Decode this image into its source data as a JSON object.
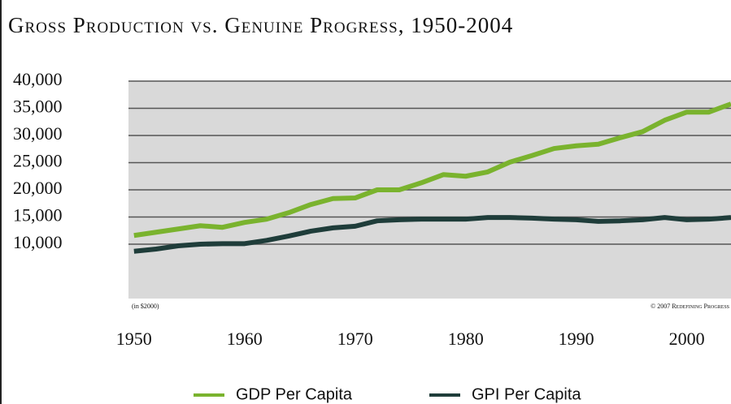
{
  "chart_data": {
    "type": "line",
    "title": "Gross Production vs. Genuine Progress, 1950-2004",
    "annotations": [
      "(in $2000)",
      "© 2007 Redefining Progress"
    ],
    "x": [
      1950,
      1952,
      1954,
      1956,
      1958,
      1960,
      1962,
      1964,
      1966,
      1968,
      1970,
      1972,
      1974,
      1976,
      1978,
      1980,
      1982,
      1984,
      1986,
      1988,
      1990,
      1992,
      1994,
      1996,
      1998,
      2000,
      2002,
      2004
    ],
    "series": [
      {
        "name": "GDP Per Capita",
        "color": "#7ab32e",
        "values": [
          11600,
          12200,
          12800,
          13400,
          13100,
          14000,
          14600,
          15800,
          17300,
          18400,
          18500,
          20000,
          20000,
          21300,
          22800,
          22500,
          23300,
          25100,
          26300,
          27600,
          28100,
          28400,
          29600,
          30700,
          32800,
          34300,
          34300,
          35800
        ]
      },
      {
        "name": "GPI Per Capita",
        "color": "#1f3d3a",
        "values": [
          8700,
          9100,
          9700,
          10000,
          10100,
          10100,
          10700,
          11500,
          12400,
          13000,
          13300,
          14300,
          14500,
          14600,
          14600,
          14600,
          14900,
          14900,
          14800,
          14600,
          14500,
          14200,
          14300,
          14500,
          14900,
          14500,
          14600,
          14900
        ]
      }
    ],
    "xlim": [
      1949.5,
      2004
    ],
    "xticks": [
      1950,
      1960,
      1970,
      1980,
      1990,
      2000
    ],
    "ylim": [
      0,
      40000
    ],
    "yticks": [
      {
        "value": 10000,
        "label": "10,000"
      },
      {
        "value": 15000,
        "label": "15,000"
      },
      {
        "value": 20000,
        "label": "20,000"
      },
      {
        "value": 25000,
        "label": "25,000"
      },
      {
        "value": 30000,
        "label": "30,000"
      },
      {
        "value": 35000,
        "label": "35,000"
      },
      {
        "value": 40000,
        "label": "40,000"
      }
    ],
    "grid": true,
    "background": "#d9d9d9"
  }
}
